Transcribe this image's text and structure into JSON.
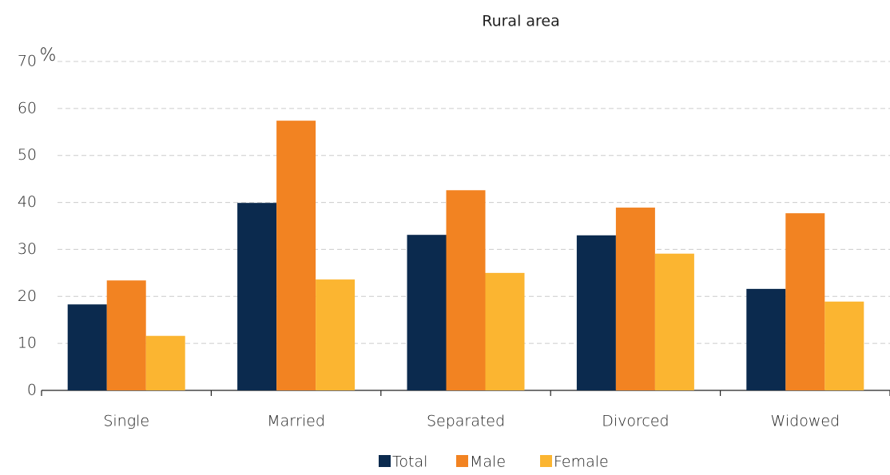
{
  "chart_data": {
    "type": "bar",
    "title": "Rural area",
    "y_label": "%",
    "categories": [
      "Single",
      "Married",
      "Separated",
      "Divorced",
      "Widowed"
    ],
    "series": [
      {
        "name": "Total",
        "color": "#0b2a4e",
        "values": [
          18.3,
          39.9,
          33.1,
          33.0,
          21.6
        ]
      },
      {
        "name": "Male",
        "color": "#f28322",
        "values": [
          23.4,
          57.4,
          42.6,
          38.9,
          37.7
        ]
      },
      {
        "name": "Female",
        "color": "#fbb531",
        "values": [
          11.6,
          23.6,
          25.0,
          29.1,
          18.9
        ]
      }
    ],
    "ylim": [
      0,
      70
    ],
    "yticks": [
      0,
      10,
      20,
      30,
      40,
      50,
      60,
      70
    ],
    "grid": true
  }
}
